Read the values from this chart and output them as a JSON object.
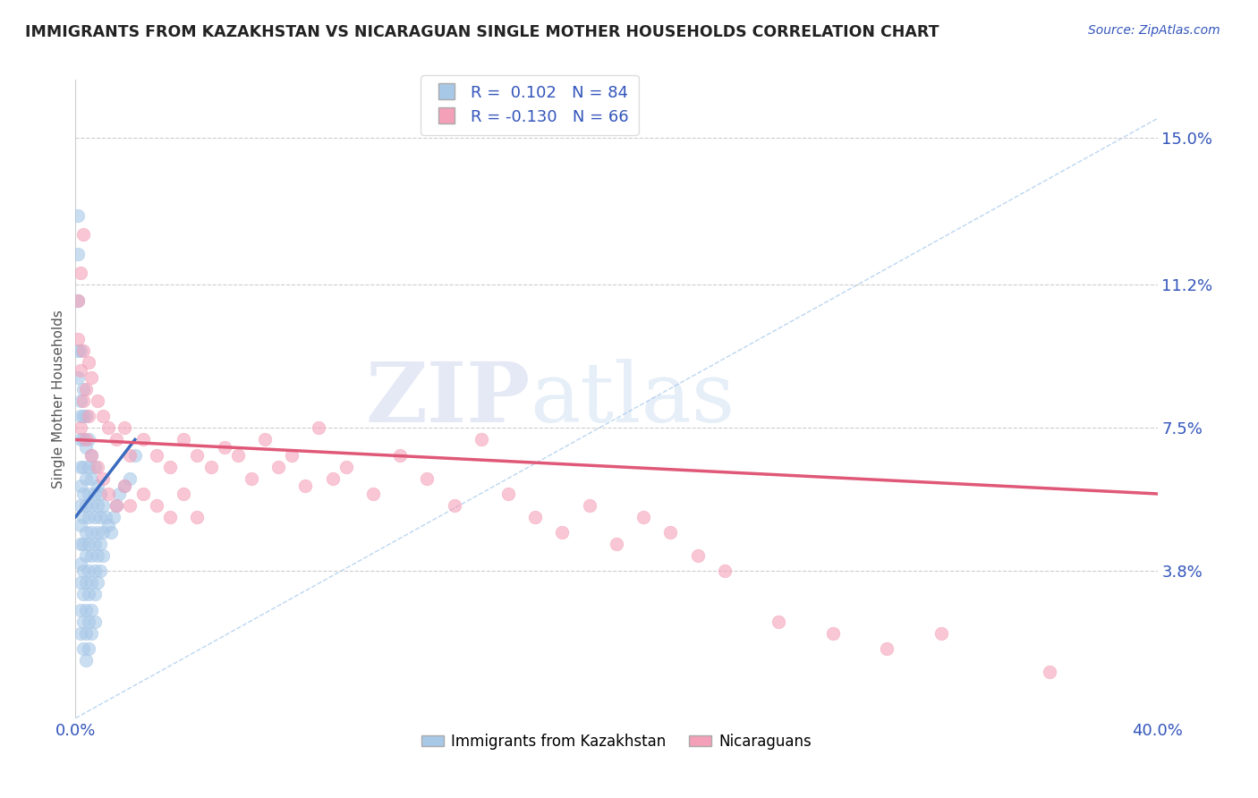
{
  "title": "IMMIGRANTS FROM KAZAKHSTAN VS NICARAGUAN SINGLE MOTHER HOUSEHOLDS CORRELATION CHART",
  "source": "Source: ZipAtlas.com",
  "ylabel": "Single Mother Households",
  "xlim": [
    0.0,
    0.4
  ],
  "ylim": [
    0.0,
    0.165
  ],
  "xtick_positions": [
    0.0,
    0.4
  ],
  "xticklabels": [
    "0.0%",
    "40.0%"
  ],
  "ytick_positions": [
    0.038,
    0.075,
    0.112,
    0.15
  ],
  "ytick_labels": [
    "3.8%",
    "7.5%",
    "11.2%",
    "15.0%"
  ],
  "legend1_label": "Immigrants from Kazakhstan",
  "legend2_label": "Nicaraguans",
  "r1": 0.102,
  "n1": 84,
  "r2": -0.13,
  "n2": 66,
  "blue_color": "#a8c8e8",
  "pink_color": "#f4a0b8",
  "blue_line_color": "#3a6bbf",
  "pink_line_color": "#e05878",
  "watermark_zip": "ZIP",
  "watermark_atlas": "atlas",
  "blue_trend_x": [
    0.0,
    0.022
  ],
  "blue_trend_y": [
    0.052,
    0.072
  ],
  "pink_trend_x": [
    0.0,
    0.4
  ],
  "pink_trend_y": [
    0.072,
    0.058
  ],
  "diag_line_x": [
    0.0,
    0.4
  ],
  "diag_line_y": [
    0.0,
    0.155
  ],
  "blue_dots": [
    [
      0.001,
      0.13
    ],
    [
      0.001,
      0.12
    ],
    [
      0.001,
      0.108
    ],
    [
      0.001,
      0.095
    ],
    [
      0.001,
      0.088
    ],
    [
      0.002,
      0.095
    ],
    [
      0.002,
      0.082
    ],
    [
      0.002,
      0.078
    ],
    [
      0.002,
      0.072
    ],
    [
      0.002,
      0.065
    ],
    [
      0.002,
      0.06
    ],
    [
      0.002,
      0.055
    ],
    [
      0.002,
      0.05
    ],
    [
      0.002,
      0.045
    ],
    [
      0.002,
      0.04
    ],
    [
      0.002,
      0.035
    ],
    [
      0.002,
      0.028
    ],
    [
      0.002,
      0.022
    ],
    [
      0.003,
      0.085
    ],
    [
      0.003,
      0.078
    ],
    [
      0.003,
      0.072
    ],
    [
      0.003,
      0.065
    ],
    [
      0.003,
      0.058
    ],
    [
      0.003,
      0.052
    ],
    [
      0.003,
      0.045
    ],
    [
      0.003,
      0.038
    ],
    [
      0.003,
      0.032
    ],
    [
      0.003,
      0.025
    ],
    [
      0.003,
      0.018
    ],
    [
      0.004,
      0.078
    ],
    [
      0.004,
      0.07
    ],
    [
      0.004,
      0.062
    ],
    [
      0.004,
      0.055
    ],
    [
      0.004,
      0.048
    ],
    [
      0.004,
      0.042
    ],
    [
      0.004,
      0.035
    ],
    [
      0.004,
      0.028
    ],
    [
      0.004,
      0.022
    ],
    [
      0.004,
      0.015
    ],
    [
      0.005,
      0.072
    ],
    [
      0.005,
      0.065
    ],
    [
      0.005,
      0.058
    ],
    [
      0.005,
      0.052
    ],
    [
      0.005,
      0.045
    ],
    [
      0.005,
      0.038
    ],
    [
      0.005,
      0.032
    ],
    [
      0.005,
      0.025
    ],
    [
      0.005,
      0.018
    ],
    [
      0.006,
      0.068
    ],
    [
      0.006,
      0.062
    ],
    [
      0.006,
      0.055
    ],
    [
      0.006,
      0.048
    ],
    [
      0.006,
      0.042
    ],
    [
      0.006,
      0.035
    ],
    [
      0.006,
      0.028
    ],
    [
      0.006,
      0.022
    ],
    [
      0.007,
      0.065
    ],
    [
      0.007,
      0.058
    ],
    [
      0.007,
      0.052
    ],
    [
      0.007,
      0.045
    ],
    [
      0.007,
      0.038
    ],
    [
      0.007,
      0.032
    ],
    [
      0.007,
      0.025
    ],
    [
      0.008,
      0.06
    ],
    [
      0.008,
      0.055
    ],
    [
      0.008,
      0.048
    ],
    [
      0.008,
      0.042
    ],
    [
      0.008,
      0.035
    ],
    [
      0.009,
      0.058
    ],
    [
      0.009,
      0.052
    ],
    [
      0.009,
      0.045
    ],
    [
      0.009,
      0.038
    ],
    [
      0.01,
      0.055
    ],
    [
      0.01,
      0.048
    ],
    [
      0.01,
      0.042
    ],
    [
      0.011,
      0.052
    ],
    [
      0.012,
      0.05
    ],
    [
      0.013,
      0.048
    ],
    [
      0.014,
      0.052
    ],
    [
      0.015,
      0.055
    ],
    [
      0.016,
      0.058
    ],
    [
      0.018,
      0.06
    ],
    [
      0.02,
      0.062
    ],
    [
      0.022,
      0.068
    ]
  ],
  "pink_dots": [
    [
      0.001,
      0.108
    ],
    [
      0.001,
      0.098
    ],
    [
      0.002,
      0.115
    ],
    [
      0.002,
      0.09
    ],
    [
      0.002,
      0.075
    ],
    [
      0.003,
      0.125
    ],
    [
      0.003,
      0.095
    ],
    [
      0.003,
      0.082
    ],
    [
      0.004,
      0.085
    ],
    [
      0.004,
      0.072
    ],
    [
      0.005,
      0.092
    ],
    [
      0.005,
      0.078
    ],
    [
      0.006,
      0.088
    ],
    [
      0.006,
      0.068
    ],
    [
      0.008,
      0.082
    ],
    [
      0.008,
      0.065
    ],
    [
      0.01,
      0.078
    ],
    [
      0.01,
      0.062
    ],
    [
      0.012,
      0.075
    ],
    [
      0.012,
      0.058
    ],
    [
      0.015,
      0.072
    ],
    [
      0.015,
      0.055
    ],
    [
      0.018,
      0.075
    ],
    [
      0.018,
      0.06
    ],
    [
      0.02,
      0.068
    ],
    [
      0.02,
      0.055
    ],
    [
      0.025,
      0.072
    ],
    [
      0.025,
      0.058
    ],
    [
      0.03,
      0.068
    ],
    [
      0.03,
      0.055
    ],
    [
      0.035,
      0.065
    ],
    [
      0.035,
      0.052
    ],
    [
      0.04,
      0.072
    ],
    [
      0.04,
      0.058
    ],
    [
      0.045,
      0.068
    ],
    [
      0.045,
      0.052
    ],
    [
      0.05,
      0.065
    ],
    [
      0.055,
      0.07
    ],
    [
      0.06,
      0.068
    ],
    [
      0.065,
      0.062
    ],
    [
      0.07,
      0.072
    ],
    [
      0.075,
      0.065
    ],
    [
      0.08,
      0.068
    ],
    [
      0.085,
      0.06
    ],
    [
      0.09,
      0.075
    ],
    [
      0.095,
      0.062
    ],
    [
      0.1,
      0.065
    ],
    [
      0.11,
      0.058
    ],
    [
      0.12,
      0.068
    ],
    [
      0.13,
      0.062
    ],
    [
      0.14,
      0.055
    ],
    [
      0.15,
      0.072
    ],
    [
      0.16,
      0.058
    ],
    [
      0.17,
      0.052
    ],
    [
      0.18,
      0.048
    ],
    [
      0.19,
      0.055
    ],
    [
      0.2,
      0.045
    ],
    [
      0.21,
      0.052
    ],
    [
      0.22,
      0.048
    ],
    [
      0.23,
      0.042
    ],
    [
      0.24,
      0.038
    ],
    [
      0.26,
      0.025
    ],
    [
      0.28,
      0.022
    ],
    [
      0.3,
      0.018
    ],
    [
      0.32,
      0.022
    ],
    [
      0.36,
      0.012
    ]
  ]
}
